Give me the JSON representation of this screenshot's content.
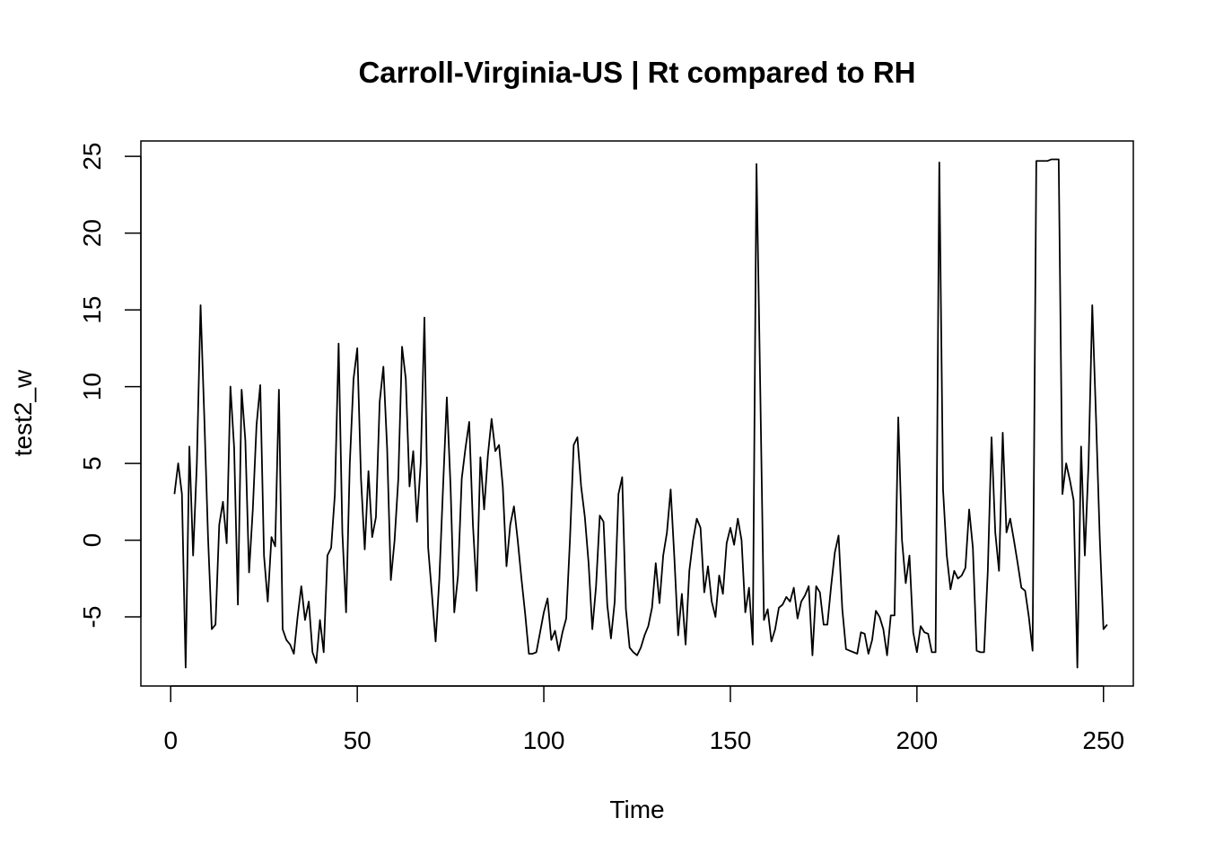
{
  "chart_data": {
    "type": "line",
    "title": "Carroll-Virginia-US | Rt compared to RH",
    "xlabel": "Time",
    "ylabel": "test2_w",
    "xlim": [
      -8,
      258
    ],
    "ylim": [
      -9.5,
      26
    ],
    "x_ticks": [
      0,
      50,
      100,
      150,
      200,
      250
    ],
    "y_ticks": [
      -5,
      0,
      5,
      10,
      15,
      20,
      25
    ],
    "grid": false,
    "legend": "none",
    "line_color": "#000000",
    "series": [
      {
        "x_start": 1,
        "values": [
          3.0,
          5.0,
          3.0,
          -8.3,
          6.1,
          -1.0,
          5.0,
          15.3,
          8.0,
          0.2,
          -5.8,
          -5.5,
          1.0,
          2.5,
          -0.2,
          10.0,
          6.0,
          -4.2,
          9.8,
          6.5,
          -2.1,
          2.0,
          7.5,
          10.1,
          -1.0,
          -4.0,
          0.2,
          -0.4,
          9.8,
          -5.8,
          -6.5,
          -6.8,
          -7.4,
          -5.0,
          -3.0,
          -5.2,
          -4.0,
          -7.3,
          -8.0,
          -5.2,
          -7.3,
          -1.0,
          -0.5,
          3.0,
          12.8,
          0.5,
          -4.7,
          5.0,
          10.5,
          12.5,
          4.0,
          -0.6,
          4.5,
          0.2,
          1.5,
          9.0,
          11.3,
          6.0,
          -2.6,
          0.0,
          4.0,
          12.6,
          10.5,
          3.5,
          5.8,
          1.2,
          5.0,
          14.5,
          -0.5,
          -3.5,
          -6.6,
          -2.5,
          3.5,
          9.3,
          3.5,
          -4.7,
          -2.3,
          4.0,
          6.0,
          7.7,
          1.0,
          -3.3,
          5.4,
          2.0,
          5.5,
          7.9,
          5.8,
          6.2,
          3.5,
          -1.7,
          1.0,
          2.2,
          0.0,
          -2.5,
          -4.8,
          -7.4,
          -7.4,
          -7.3,
          -6.0,
          -4.7,
          -3.8,
          -6.5,
          -5.9,
          -7.2,
          -6.0,
          -5.1,
          0.0,
          6.2,
          6.7,
          3.5,
          1.5,
          -1.5,
          -5.8,
          -3.0,
          1.6,
          1.2,
          -4.2,
          -6.4,
          -4.0,
          3.0,
          4.1,
          -4.5,
          -7.0,
          -7.3,
          -7.5,
          -7.0,
          -6.2,
          -5.6,
          -4.4,
          -1.5,
          -4.1,
          -1.0,
          0.5,
          3.3,
          -1.2,
          -6.2,
          -3.5,
          -6.8,
          -2.0,
          0.0,
          1.4,
          0.8,
          -3.4,
          -1.7,
          -4.0,
          -5.0,
          -2.3,
          -3.5,
          -0.2,
          0.8,
          -0.3,
          1.4,
          0.0,
          -4.7,
          -3.1,
          -6.8,
          24.5,
          10.0,
          -5.2,
          -4.5,
          -6.6,
          -5.8,
          -4.4,
          -4.2,
          -3.7,
          -4.0,
          -3.1,
          -5.1,
          -4.0,
          -3.6,
          -3.0,
          -7.5,
          -3.0,
          -3.4,
          -5.5,
          -5.5,
          -3.0,
          -0.8,
          0.3,
          -4.5,
          -7.1,
          -7.2,
          -7.3,
          -7.4,
          -6.0,
          -6.1,
          -7.4,
          -6.5,
          -4.6,
          -5.0,
          -5.8,
          -7.5,
          -4.9,
          -4.9,
          8.0,
          0.0,
          -2.8,
          -1.0,
          -6.0,
          -7.3,
          -5.6,
          -6.0,
          -6.1,
          -7.3,
          -7.3,
          24.6,
          3.3,
          -1.0,
          -3.2,
          -2.0,
          -2.5,
          -2.3,
          -1.8,
          2.0,
          -0.5,
          -7.2,
          -7.3,
          -7.3,
          -2.0,
          6.7,
          0.5,
          -2.0,
          7.0,
          0.5,
          1.4,
          0.0,
          -1.5,
          -3.1,
          -3.3,
          -5.0,
          -7.2,
          24.7,
          24.7,
          24.7,
          24.7,
          24.8,
          24.8,
          24.8,
          3.0,
          5.0,
          3.9,
          2.6,
          -8.3,
          6.1,
          -1.0,
          5.0,
          15.3,
          8.0,
          0.2,
          -5.8,
          -5.5
        ]
      }
    ]
  }
}
